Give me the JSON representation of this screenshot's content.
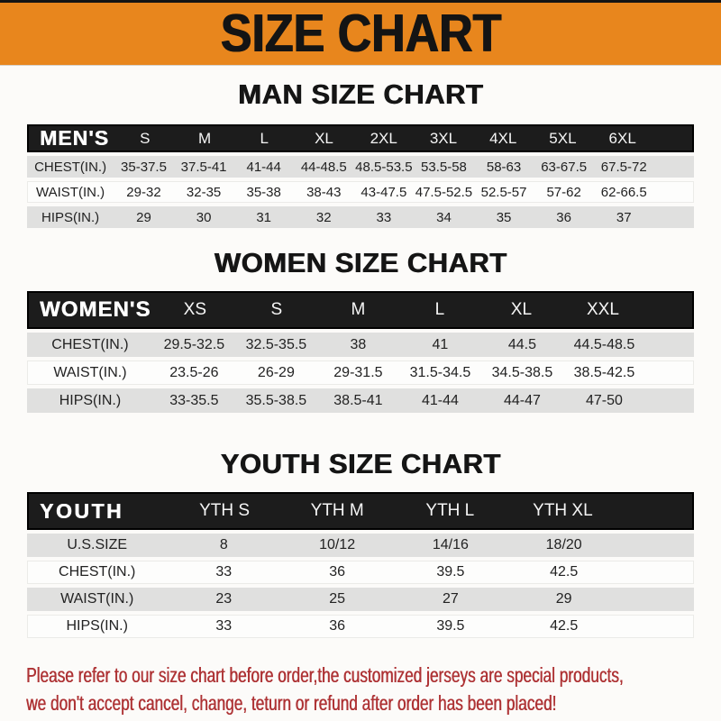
{
  "banner": {
    "title": "SIZE CHART"
  },
  "colors": {
    "banner_orange": "#E8861D",
    "header_bar_black": "#1C1C1C",
    "row_gray": "#E0E0DF",
    "footer_red": "#AE3335"
  },
  "sections": [
    {
      "name": "men",
      "title": "MAN SIZE CHART",
      "header_label": "MEN'S",
      "columns": [
        "S",
        "M",
        "L",
        "XL",
        "2XL",
        "3XL",
        "4XL",
        "5XL",
        "6XL"
      ],
      "rows": [
        {
          "label": "CHEST(IN.)",
          "values": [
            "35-37.5",
            "37.5-41",
            "41-44",
            "44-48.5",
            "48.5-53.5",
            "53.5-58",
            "58-63",
            "63-67.5",
            "67.5-72"
          ]
        },
        {
          "label": "WAIST(IN.)",
          "values": [
            "29-32",
            "32-35",
            "35-38",
            "38-43",
            "43-47.5",
            "47.5-52.5",
            "52.5-57",
            "57-62",
            "62-66.5"
          ]
        },
        {
          "label": "HIPS(IN.)",
          "values": [
            "29",
            "30",
            "31",
            "32",
            "33",
            "34",
            "35",
            "36",
            "37"
          ]
        }
      ]
    },
    {
      "name": "women",
      "title": "WOMEN SIZE CHART",
      "header_label": "WOMEN'S",
      "columns": [
        "XS",
        "S",
        "M",
        "L",
        "XL",
        "XXL"
      ],
      "rows": [
        {
          "label": "CHEST(IN.)",
          "values": [
            "29.5-32.5",
            "32.5-35.5",
            "38",
            "41",
            "44.5",
            "44.5-48.5"
          ]
        },
        {
          "label": "WAIST(IN.)",
          "values": [
            "23.5-26",
            "26-29",
            "29-31.5",
            "31.5-34.5",
            "34.5-38.5",
            "38.5-42.5"
          ]
        },
        {
          "label": "HIPS(IN.)",
          "values": [
            "33-35.5",
            "35.5-38.5",
            "38.5-41",
            "41-44",
            "44-47",
            "47-50"
          ]
        }
      ]
    },
    {
      "name": "youth",
      "title": "YOUTH SIZE CHART",
      "header_label": "YOUTH",
      "columns": [
        "YTH S",
        "YTH M",
        "YTH L",
        "YTH XL"
      ],
      "rows": [
        {
          "label": "U.S.SIZE",
          "values": [
            "8",
            "10/12",
            "14/16",
            "18/20"
          ]
        },
        {
          "label": "CHEST(IN.)",
          "values": [
            "33",
            "36",
            "39.5",
            "42.5"
          ]
        },
        {
          "label": "WAIST(IN.)",
          "values": [
            "23",
            "25",
            "27",
            "29"
          ]
        },
        {
          "label": "HIPS(IN.)",
          "values": [
            "33",
            "36",
            "39.5",
            "42.5"
          ]
        }
      ]
    }
  ],
  "footer": {
    "line1": "Please refer to our size chart before order,the customized jerseys are special products,",
    "line2": "we don't accept cancel, change, teturn or refund after order has been placed!"
  }
}
